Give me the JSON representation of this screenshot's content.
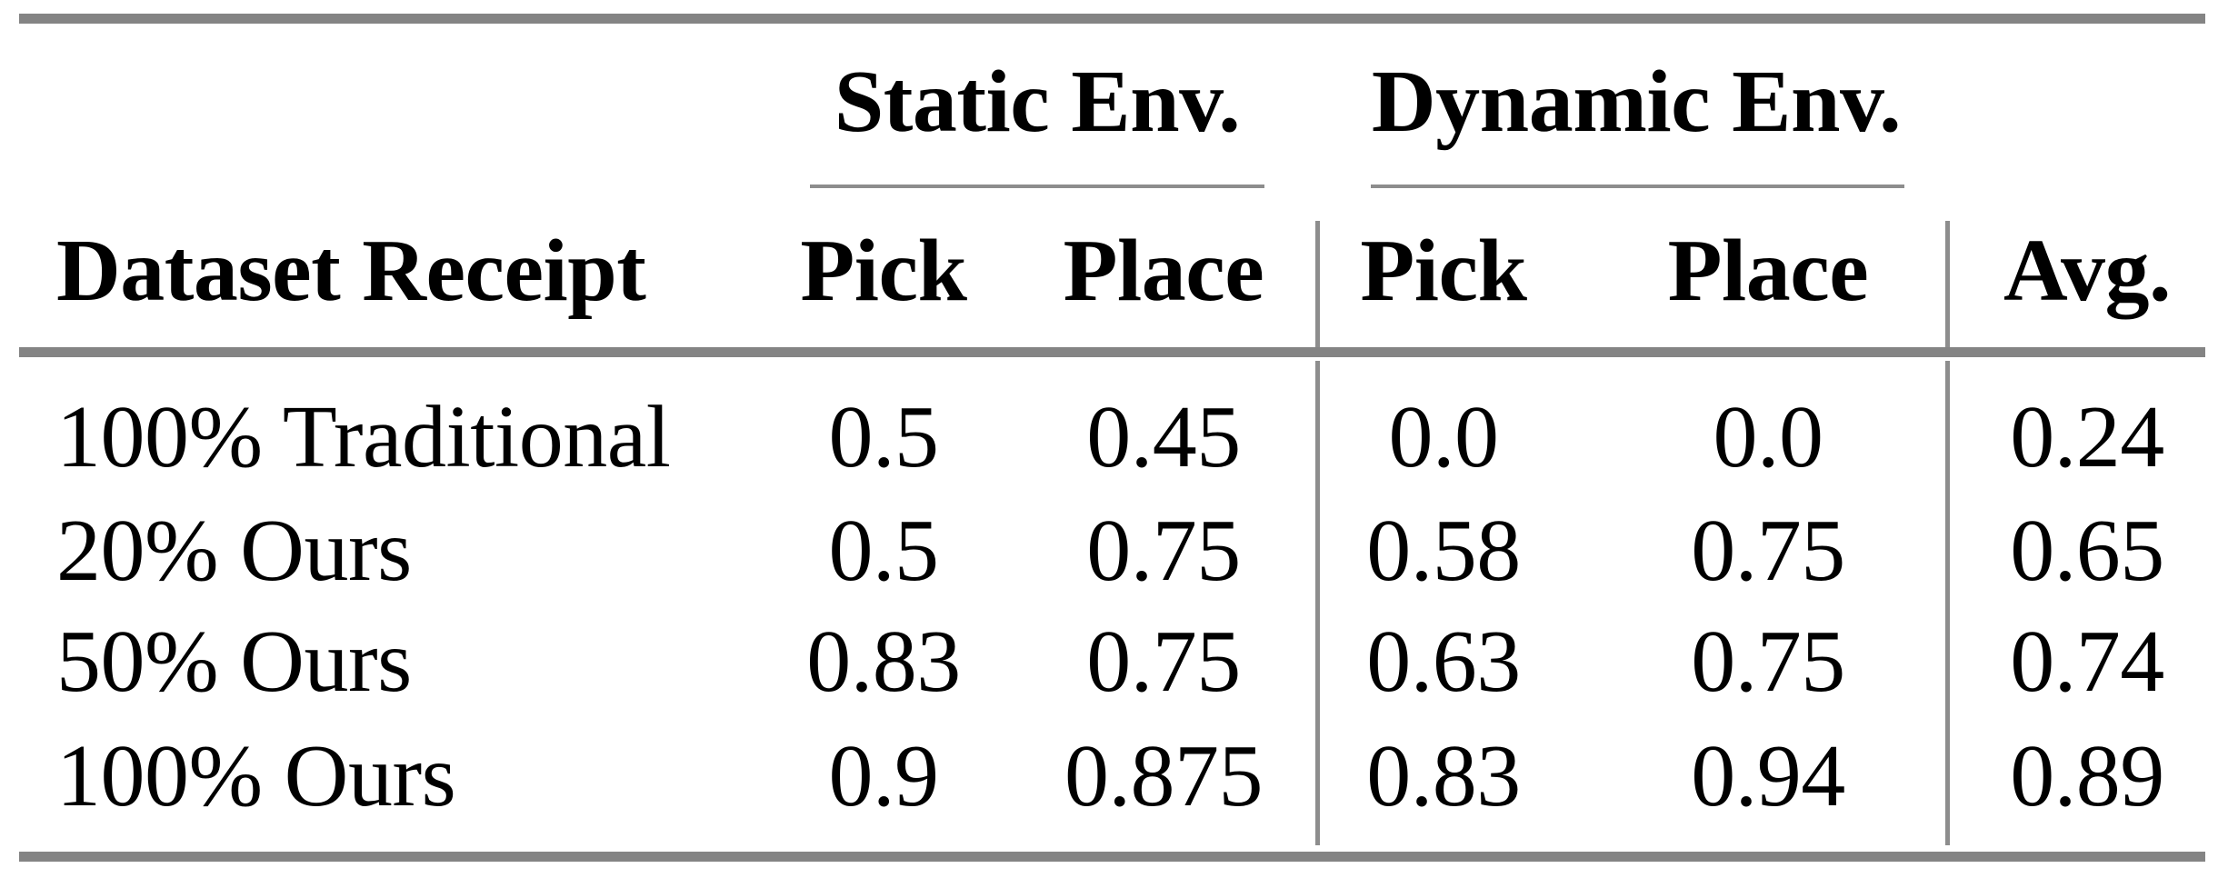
{
  "table": {
    "col_groups": [
      {
        "label": "Static Env."
      },
      {
        "label": "Dynamic Env."
      }
    ],
    "headers": {
      "dataset": "Dataset Receipt",
      "static_pick": "Pick",
      "static_place": "Place",
      "dynamic_pick": "Pick",
      "dynamic_place": "Place",
      "avg": "Avg."
    },
    "rows": [
      {
        "label": "100% Traditional",
        "static_pick": "0.5",
        "static_place": "0.45",
        "dynamic_pick": "0.0",
        "dynamic_place": "0.0",
        "avg": "0.24"
      },
      {
        "label": "20% Ours",
        "static_pick": "0.5",
        "static_place": "0.75",
        "dynamic_pick": "0.58",
        "dynamic_place": "0.75",
        "avg": "0.65"
      },
      {
        "label": "50% Ours",
        "static_pick": "0.83",
        "static_place": "0.75",
        "dynamic_pick": "0.63",
        "dynamic_place": "0.75",
        "avg": "0.74"
      },
      {
        "label": "100% Ours",
        "static_pick": "0.9",
        "static_place": "0.875",
        "dynamic_pick": "0.83",
        "dynamic_place": "0.94",
        "avg": "0.89"
      }
    ]
  },
  "chart_data": {
    "type": "table",
    "title": "",
    "column_groups": [
      "Static Env.",
      "Dynamic Env."
    ],
    "columns": [
      "Dataset Receipt",
      "Static Env. Pick",
      "Static Env. Place",
      "Dynamic Env. Pick",
      "Dynamic Env. Place",
      "Avg."
    ],
    "rows": [
      [
        "100% Traditional",
        0.5,
        0.45,
        0.0,
        0.0,
        0.24
      ],
      [
        "20% Ours",
        0.5,
        0.75,
        0.58,
        0.75,
        0.65
      ],
      [
        "50% Ours",
        0.83,
        0.75,
        0.63,
        0.75,
        0.74
      ],
      [
        "100% Ours",
        0.9,
        0.875,
        0.83,
        0.94,
        0.89
      ]
    ]
  },
  "colors": {
    "rule_heavy": "#848484",
    "rule_light": "#8d8d8d",
    "text": "#000000",
    "background": "#ffffff"
  }
}
